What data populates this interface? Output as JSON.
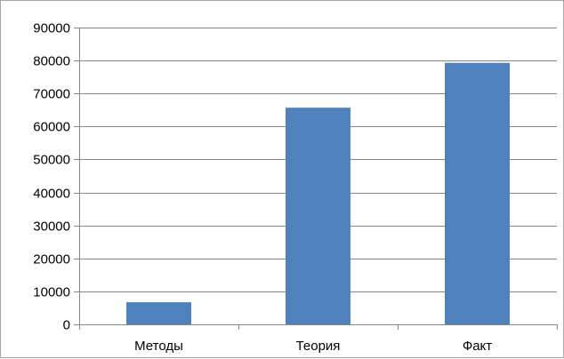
{
  "chart_data": {
    "type": "bar",
    "categories": [
      "Методы",
      "Теория",
      "Факт"
    ],
    "values": [
      6700,
      65700,
      79300
    ],
    "ylim": [
      0,
      90000
    ],
    "yticks": [
      0,
      10000,
      20000,
      30000,
      40000,
      50000,
      60000,
      70000,
      80000,
      90000
    ],
    "yticklabels": [
      "0",
      "10000",
      "20000",
      "30000",
      "40000",
      "50000",
      "60000",
      "70000",
      "80000",
      "90000"
    ],
    "grid": true,
    "legend": "none",
    "colors": {
      "bar": "#4f81bd",
      "grid": "#868686",
      "axis": "#868686"
    }
  }
}
